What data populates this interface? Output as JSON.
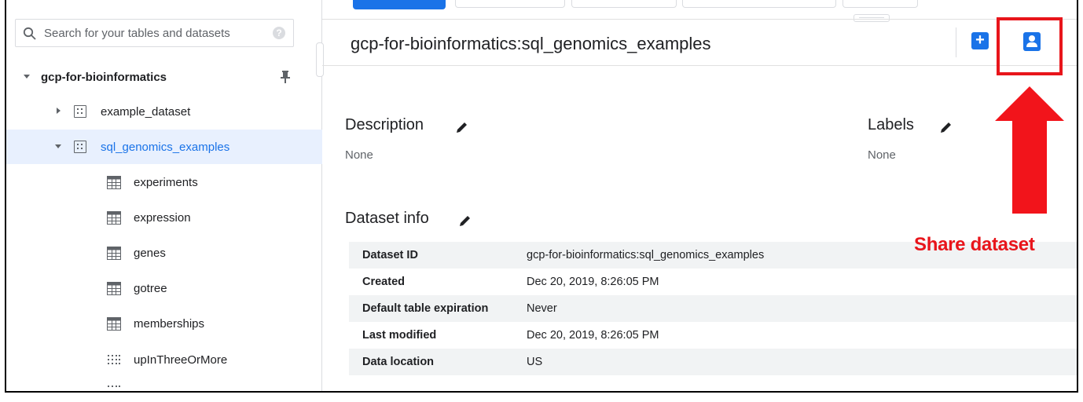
{
  "search": {
    "placeholder": "Search for your tables and datasets",
    "help_icon": "help-circle-icon"
  },
  "tree": {
    "project": "gcp-for-bioinformatics",
    "datasets": [
      {
        "label": "example_dataset",
        "expanded": false
      },
      {
        "label": "sql_genomics_examples",
        "expanded": true,
        "selected": true
      }
    ],
    "tables": [
      {
        "label": "experiments",
        "icon": "table-icon"
      },
      {
        "label": "expression",
        "icon": "table-icon"
      },
      {
        "label": "genes",
        "icon": "table-icon"
      },
      {
        "label": "gotree",
        "icon": "table-icon"
      },
      {
        "label": "memberships",
        "icon": "table-icon"
      },
      {
        "label": "upInThreeOrMore",
        "icon": "view-icon"
      }
    ]
  },
  "header": {
    "title": "gcp-for-bioinformatics:sql_genomics_examples",
    "add_icon": "plus-icon",
    "share_icon": "share-dataset-icon"
  },
  "description": {
    "heading": "Description",
    "value": "None"
  },
  "labels": {
    "heading": "Labels",
    "value": "None"
  },
  "dataset_info": {
    "heading": "Dataset info",
    "rows": [
      {
        "key": "Dataset ID",
        "value": "gcp-for-bioinformatics:sql_genomics_examples"
      },
      {
        "key": "Created",
        "value": "Dec 20, 2019, 8:26:05 PM"
      },
      {
        "key": "Default table expiration",
        "value": "Never"
      },
      {
        "key": "Last modified",
        "value": "Dec 20, 2019, 8:26:05 PM"
      },
      {
        "key": "Data location",
        "value": "US"
      }
    ]
  },
  "annotation": {
    "text": "Share dataset",
    "color": "#e8151b"
  },
  "colors": {
    "accent": "#1a73e8",
    "selected_bg": "#e8f0fe"
  }
}
